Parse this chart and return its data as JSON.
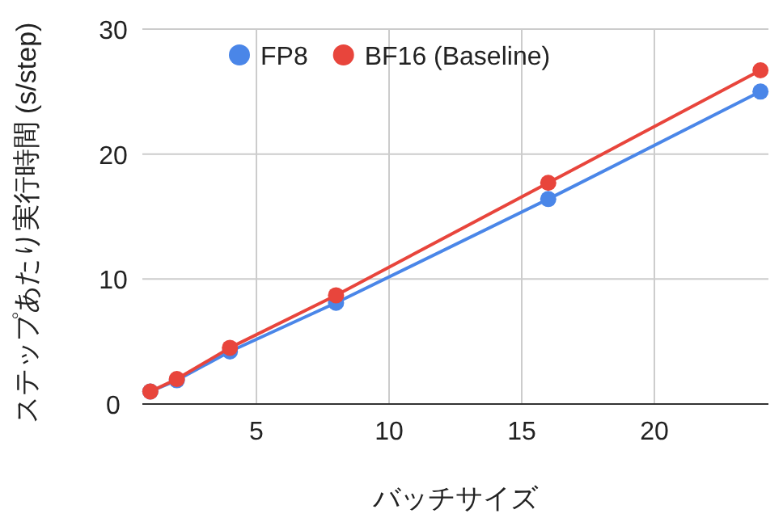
{
  "chart_data": {
    "type": "line",
    "xlabel": "バッチサイズ",
    "ylabel": "ステップあたり実行時間 (s/step)",
    "x": [
      1,
      2,
      4,
      8,
      16,
      24
    ],
    "series": [
      {
        "name": "FP8",
        "color": "#4a86e8",
        "values": [
          1.0,
          1.9,
          4.2,
          8.1,
          16.4,
          25.0
        ]
      },
      {
        "name": "BF16 (Baseline)",
        "color": "#e8453c",
        "values": [
          1.0,
          2.0,
          4.5,
          8.7,
          17.7,
          26.7
        ]
      }
    ],
    "xlim": [
      0.7,
      24.3
    ],
    "xticks": [
      5,
      10,
      15,
      20
    ],
    "ylim": [
      0,
      30
    ],
    "yticks": [
      0,
      10,
      20,
      30
    ],
    "grid": true,
    "legend": "top left",
    "marker": "circle",
    "line_style": "solid"
  }
}
